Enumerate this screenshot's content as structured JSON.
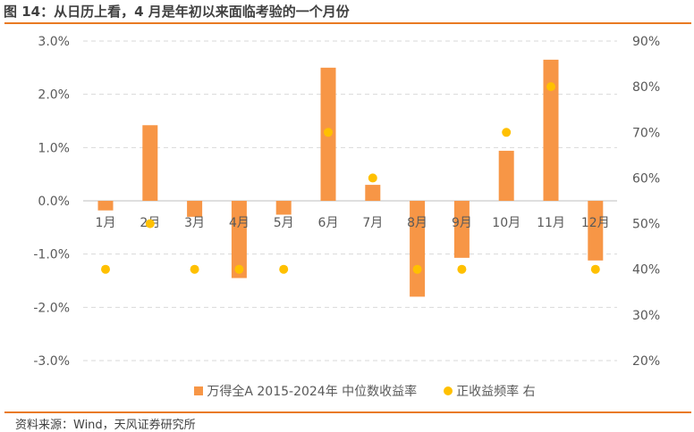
{
  "header": {
    "title": "图 14：从日历上看，4 月是年初以来面临考验的一个月份"
  },
  "footer": {
    "source": "资料来源：Wind，天风证券研究所"
  },
  "colors": {
    "bar": "#F79646",
    "dot": "#FFC000",
    "rule": "#E97A22",
    "grid": "#D9D9D9",
    "text": "#595959"
  },
  "legend": {
    "bar_label": "万得全A 2015-2024年 中位数收益率",
    "dot_label": "正收益频率 右"
  },
  "chart_data": {
    "type": "bar+scatter",
    "title": "图 14：从日历上看，4 月是年初以来面临考验的一个月份",
    "categories": [
      "1月",
      "2月",
      "3月",
      "4月",
      "5月",
      "6月",
      "7月",
      "8月",
      "9月",
      "10月",
      "11月",
      "12月"
    ],
    "series": [
      {
        "name": "万得全A 2015-2024年 中位数收益率",
        "type": "bar",
        "axis": "left",
        "unit": "%",
        "values": [
          -0.18,
          1.42,
          -0.3,
          -1.45,
          -0.26,
          2.5,
          0.3,
          -1.8,
          -1.07,
          0.94,
          2.65,
          -1.12
        ]
      },
      {
        "name": "正收益频率 右",
        "type": "scatter",
        "axis": "right",
        "unit": "%",
        "values": [
          40,
          50,
          40,
          40,
          40,
          70,
          60,
          40,
          40,
          70,
          80,
          40
        ]
      }
    ],
    "left_axis": {
      "ylim": [
        -3.0,
        3.0
      ],
      "ticks": [
        "3.0%",
        "2.0%",
        "1.0%",
        "0.0%",
        "-1.0%",
        "-2.0%",
        "-3.0%"
      ]
    },
    "right_axis": {
      "ylim": [
        20,
        90
      ],
      "ticks": [
        "90%",
        "80%",
        "70%",
        "60%",
        "50%",
        "40%",
        "30%",
        "20%"
      ]
    },
    "grid": "horizontal dashed",
    "legend_position": "bottom",
    "xlabel": "",
    "ylabel": ""
  }
}
